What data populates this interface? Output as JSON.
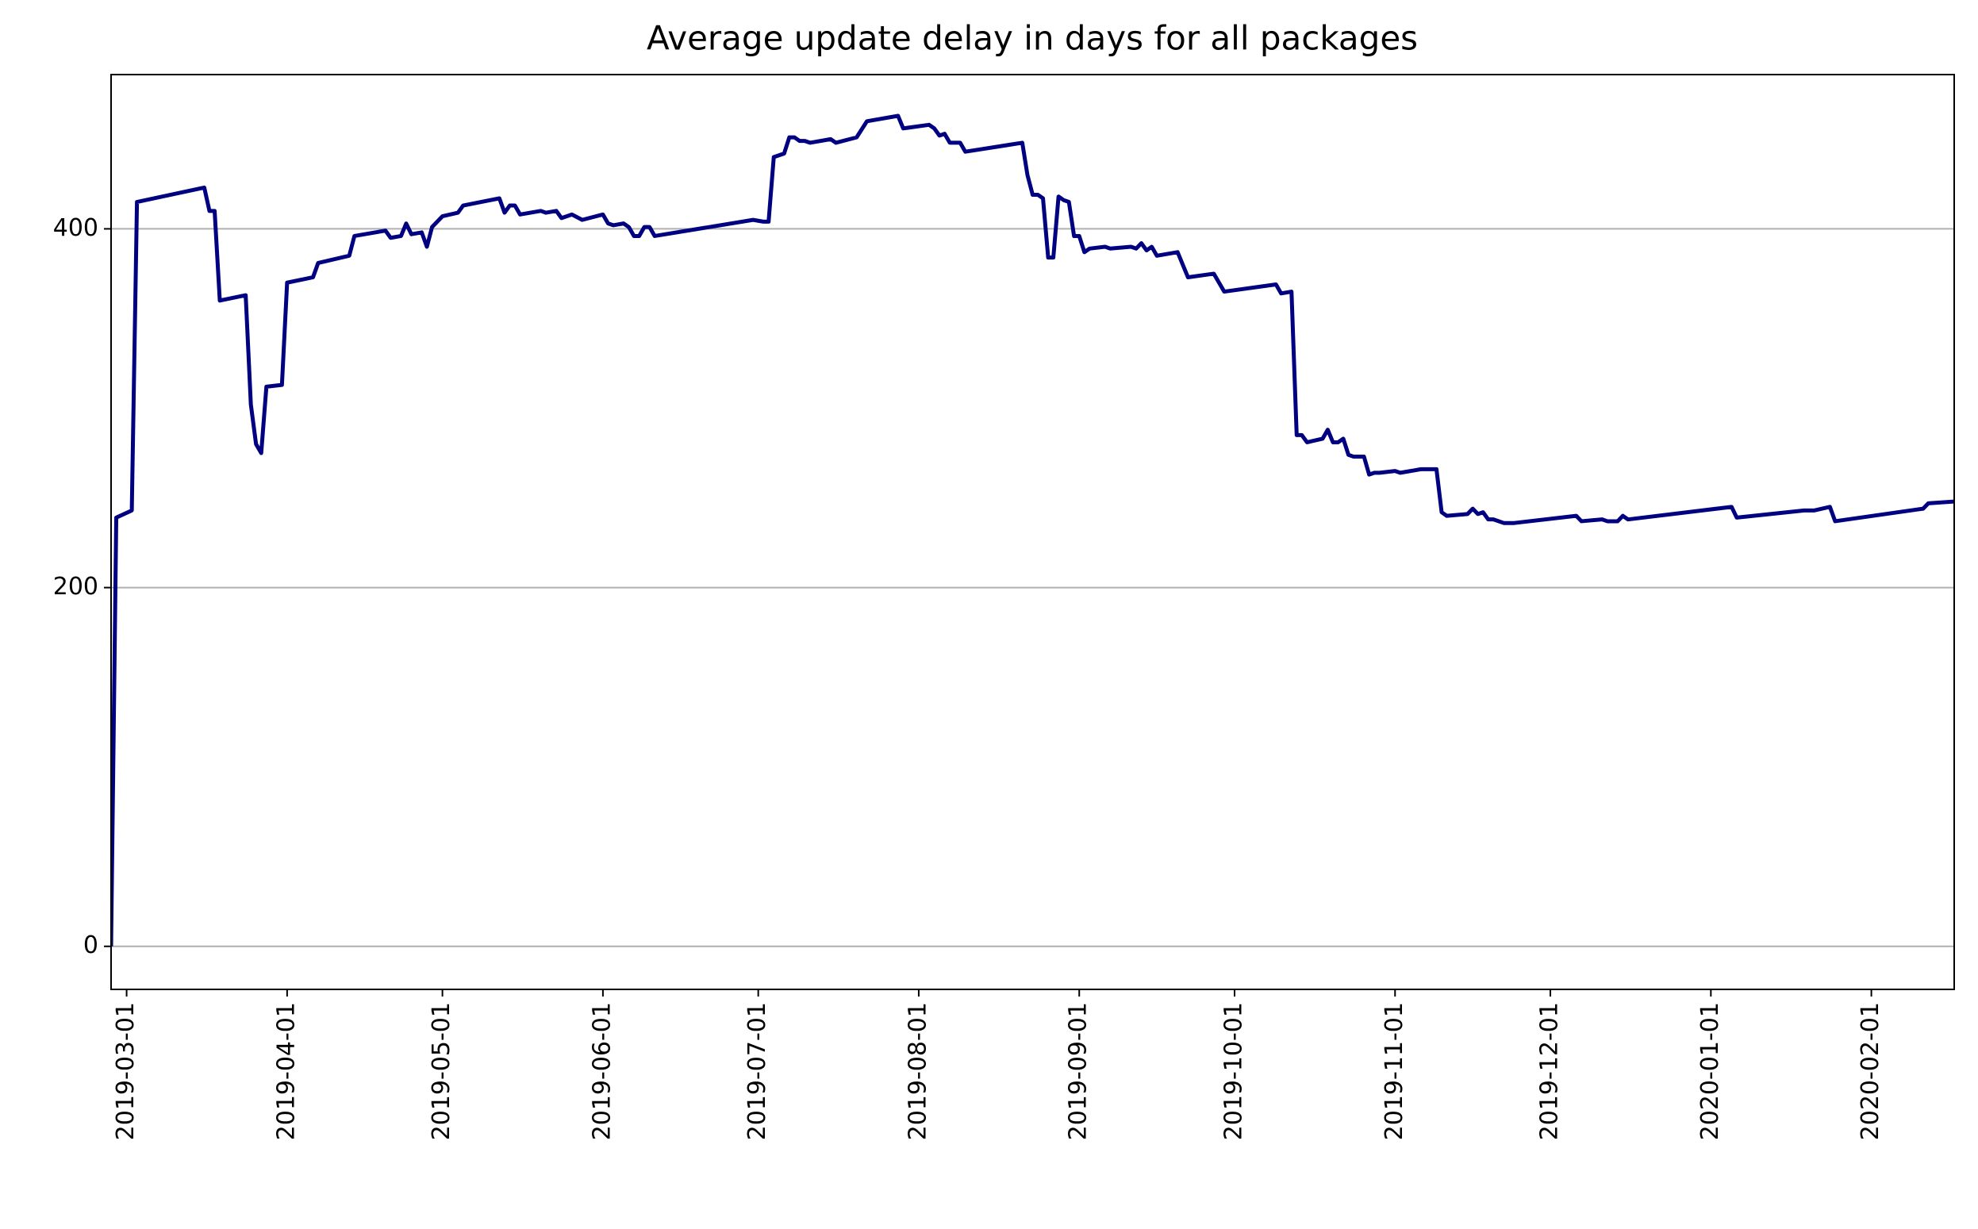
{
  "chart_data": {
    "type": "line",
    "title": "Average update delay in days for all packages",
    "x": [
      "2019-02-26",
      "2019-02-27",
      "2019-03-02",
      "2019-03-03",
      "2019-03-16",
      "2019-03-17",
      "2019-03-18",
      "2019-03-19",
      "2019-03-24",
      "2019-03-25",
      "2019-03-26",
      "2019-03-27",
      "2019-03-28",
      "2019-03-31",
      "2019-04-01",
      "2019-04-06",
      "2019-04-07",
      "2019-04-13",
      "2019-04-14",
      "2019-04-20",
      "2019-04-21",
      "2019-04-23",
      "2019-04-24",
      "2019-04-25",
      "2019-04-27",
      "2019-04-28",
      "2019-04-29",
      "2019-05-01",
      "2019-05-04",
      "2019-05-05",
      "2019-05-12",
      "2019-05-13",
      "2019-05-14",
      "2019-05-15",
      "2019-05-16",
      "2019-05-20",
      "2019-05-21",
      "2019-05-23",
      "2019-05-24",
      "2019-05-26",
      "2019-05-28",
      "2019-06-01",
      "2019-06-02",
      "2019-06-03",
      "2019-06-05",
      "2019-06-06",
      "2019-06-07",
      "2019-06-08",
      "2019-06-09",
      "2019-06-10",
      "2019-06-11",
      "2019-06-30",
      "2019-07-02",
      "2019-07-03",
      "2019-07-04",
      "2019-07-06",
      "2019-07-07",
      "2019-07-08",
      "2019-07-09",
      "2019-07-10",
      "2019-07-11",
      "2019-07-15",
      "2019-07-16",
      "2019-07-20",
      "2019-07-22",
      "2019-07-28",
      "2019-07-29",
      "2019-08-03",
      "2019-08-04",
      "2019-08-05",
      "2019-08-06",
      "2019-08-07",
      "2019-08-09",
      "2019-08-10",
      "2019-08-21",
      "2019-08-22",
      "2019-08-23",
      "2019-08-24",
      "2019-08-25",
      "2019-08-26",
      "2019-08-27",
      "2019-08-28",
      "2019-08-29",
      "2019-08-30",
      "2019-08-31",
      "2019-09-01",
      "2019-09-02",
      "2019-09-03",
      "2019-09-06",
      "2019-09-07",
      "2019-09-11",
      "2019-09-12",
      "2019-09-13",
      "2019-09-14",
      "2019-09-15",
      "2019-09-16",
      "2019-09-20",
      "2019-09-22",
      "2019-09-27",
      "2019-09-29",
      "2019-10-09",
      "2019-10-10",
      "2019-10-12",
      "2019-10-13",
      "2019-10-14",
      "2019-10-15",
      "2019-10-18",
      "2019-10-19",
      "2019-10-20",
      "2019-10-21",
      "2019-10-22",
      "2019-10-23",
      "2019-10-24",
      "2019-10-26",
      "2019-10-27",
      "2019-10-28",
      "2019-10-29",
      "2019-11-01",
      "2019-11-02",
      "2019-11-06",
      "2019-11-09",
      "2019-11-10",
      "2019-11-11",
      "2019-11-15",
      "2019-11-16",
      "2019-11-17",
      "2019-11-18",
      "2019-11-19",
      "2019-11-20",
      "2019-11-22",
      "2019-11-24",
      "2019-12-06",
      "2019-12-07",
      "2019-12-11",
      "2019-12-12",
      "2019-12-14",
      "2019-12-15",
      "2019-12-16",
      "2020-01-05",
      "2020-01-06",
      "2020-01-19",
      "2020-01-21",
      "2020-01-24",
      "2020-01-25",
      "2020-02-11",
      "2020-02-12",
      "2020-02-17"
    ],
    "series": [
      {
        "name": "Average update delay",
        "color": "#000080",
        "values": [
          0,
          239,
          243,
          415,
          423,
          410,
          410,
          360,
          363,
          302,
          280,
          275,
          312,
          313,
          370,
          373,
          381,
          385,
          396,
          399,
          395,
          396,
          403,
          397,
          398,
          390,
          401,
          407,
          409,
          413,
          417,
          409,
          413,
          413,
          408,
          410,
          409,
          410,
          406,
          408,
          405,
          408,
          403,
          402,
          403,
          401,
          396,
          396,
          401,
          401,
          396,
          405,
          404,
          404,
          440,
          442,
          451,
          451,
          449,
          449,
          448,
          450,
          448,
          451,
          460,
          463,
          456,
          458,
          456,
          452,
          453,
          448,
          448,
          443,
          448,
          430,
          419,
          419,
          417,
          384,
          384,
          418,
          416,
          415,
          396,
          396,
          387,
          389,
          390,
          389,
          390,
          389,
          392,
          388,
          390,
          385,
          387,
          373,
          375,
          365,
          369,
          364,
          365,
          285,
          285,
          281,
          283,
          288,
          281,
          281,
          283,
          274,
          273,
          273,
          263,
          264,
          264,
          265,
          264,
          266,
          266,
          242,
          240,
          241,
          244,
          241,
          242,
          238,
          238,
          236,
          236,
          240,
          237,
          238,
          237,
          237,
          240,
          238,
          245,
          239,
          243,
          243,
          245,
          237,
          244,
          247,
          248
        ]
      }
    ],
    "xlim": [
      "2019-02-26",
      "2020-02-17"
    ],
    "xticks": [
      "2019-03-01",
      "2019-04-01",
      "2019-05-01",
      "2019-06-01",
      "2019-07-01",
      "2019-08-01",
      "2019-09-01",
      "2019-10-01",
      "2019-11-01",
      "2019-12-01",
      "2020-01-01",
      "2020-02-01"
    ],
    "ylim": [
      -24,
      486
    ],
    "yticks": [
      0,
      200,
      400
    ],
    "grid": true
  }
}
